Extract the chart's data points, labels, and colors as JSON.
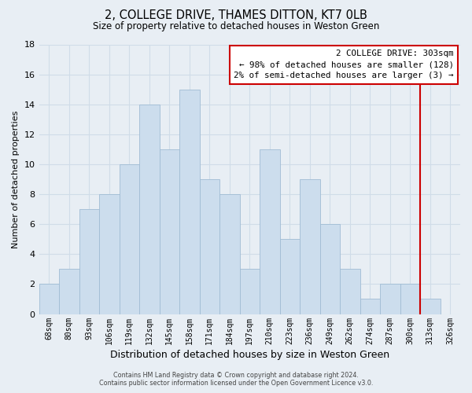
{
  "title": "2, COLLEGE DRIVE, THAMES DITTON, KT7 0LB",
  "subtitle": "Size of property relative to detached houses in Weston Green",
  "xlabel": "Distribution of detached houses by size in Weston Green",
  "ylabel": "Number of detached properties",
  "footer_line1": "Contains HM Land Registry data © Crown copyright and database right 2024.",
  "footer_line2": "Contains public sector information licensed under the Open Government Licence v3.0.",
  "bin_labels": [
    "68sqm",
    "80sqm",
    "93sqm",
    "106sqm",
    "119sqm",
    "132sqm",
    "145sqm",
    "158sqm",
    "171sqm",
    "184sqm",
    "197sqm",
    "210sqm",
    "223sqm",
    "236sqm",
    "249sqm",
    "262sqm",
    "274sqm",
    "287sqm",
    "300sqm",
    "313sqm",
    "326sqm"
  ],
  "bar_heights": [
    2,
    3,
    7,
    8,
    10,
    14,
    11,
    15,
    9,
    8,
    3,
    11,
    5,
    9,
    6,
    3,
    1,
    2,
    2,
    1,
    0
  ],
  "bar_color": "#ccdded",
  "bar_edge_color": "#a0bcd4",
  "ylim": [
    0,
    18
  ],
  "yticks": [
    0,
    2,
    4,
    6,
    8,
    10,
    12,
    14,
    16,
    18
  ],
  "vline_x_index": 18.5,
  "vline_color": "#cc0000",
  "annotation_title": "2 COLLEGE DRIVE: 303sqm",
  "annotation_line1": "← 98% of detached houses are smaller (128)",
  "annotation_line2": "2% of semi-detached houses are larger (3) →",
  "annotation_box_color": "#cc0000",
  "background_color": "#e8eef4",
  "grid_color": "#d0dce8",
  "plot_bg_color": "#e8eef4"
}
